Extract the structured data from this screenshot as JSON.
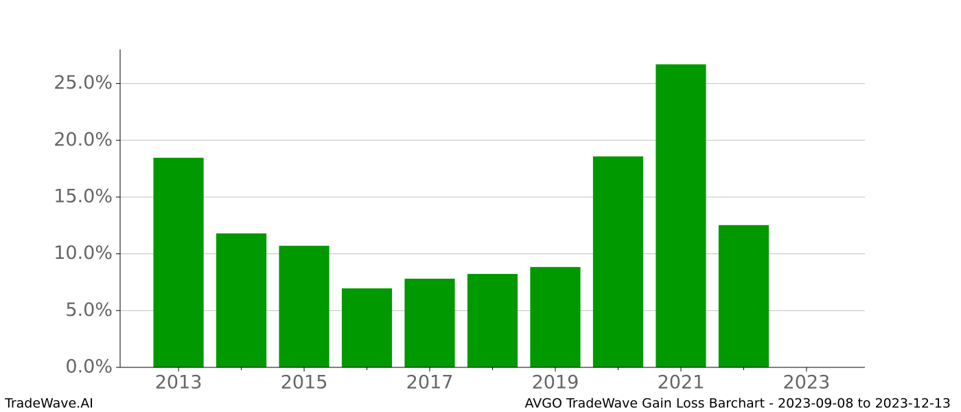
{
  "chart_data": {
    "type": "bar",
    "title": "AVGO TradeWave Gain Loss Barchart - 2023-09-08 to 2023-12-13",
    "watermark": "TradeWave.AI",
    "x": [
      2013,
      2014,
      2015,
      2016,
      2017,
      2018,
      2019,
      2020,
      2021,
      2022
    ],
    "values": [
      18.46,
      11.8,
      10.71,
      6.96,
      7.81,
      8.23,
      8.84,
      18.58,
      26.69,
      12.53
    ],
    "color": "#009900",
    "xlim": [
      2012.07,
      2023.93
    ],
    "xticks": [
      2013,
      2015,
      2017,
      2019,
      2021,
      2023
    ],
    "xticks_minor": [
      2014,
      2016,
      2018,
      2020,
      2022
    ],
    "ylim": [
      0,
      28
    ],
    "yticks": [
      {
        "value": 0,
        "label": "0.0%"
      },
      {
        "value": 5,
        "label": "5.0%"
      },
      {
        "value": 10,
        "label": "10.0%"
      },
      {
        "value": 15,
        "label": "15.0%"
      },
      {
        "value": 20,
        "label": "20.0%"
      },
      {
        "value": 25,
        "label": "25.0%"
      }
    ],
    "grid": true
  }
}
